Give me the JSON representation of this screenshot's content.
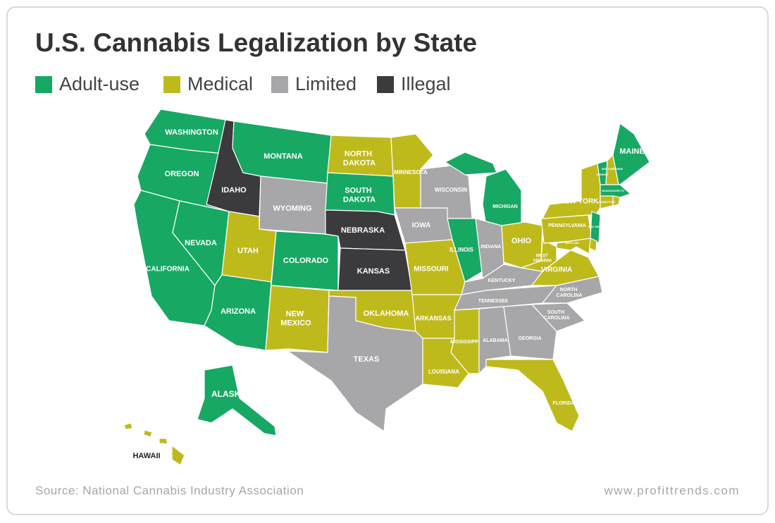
{
  "title": "U.S. Cannabis Legalization by State",
  "legend": [
    {
      "name": "Adult-use",
      "color": "#17a864"
    },
    {
      "name": "Medical",
      "color": "#bfba1c"
    },
    {
      "name": "Limited",
      "color": "#a7a6a8"
    },
    {
      "name": "Illegal",
      "color": "#3b3a3c"
    }
  ],
  "states": [
    {
      "label": "WASHINGTON",
      "status": 0
    },
    {
      "label": "OREGON",
      "status": 0
    },
    {
      "label": "CALIFORNIA",
      "status": 0
    },
    {
      "label": "NEVADA",
      "status": 0
    },
    {
      "label": "IDAHO",
      "status": 3
    },
    {
      "label": "MONTANA",
      "status": 0
    },
    {
      "label": "WYOMING",
      "status": 2
    },
    {
      "label": "UTAH",
      "status": 1
    },
    {
      "label": "COLORADO",
      "status": 0
    },
    {
      "label": "ARIZONA",
      "status": 0
    },
    {
      "label": "NEW MEXICO",
      "status": 1
    },
    {
      "label": "NORTH DAKOTA",
      "status": 1
    },
    {
      "label": "SOUTH DAKOTA",
      "status": 0
    },
    {
      "label": "NEBRASKA",
      "status": 3
    },
    {
      "label": "KANSAS",
      "status": 3
    },
    {
      "label": "OKLAHOMA",
      "status": 1
    },
    {
      "label": "TEXAS",
      "status": 2
    },
    {
      "label": "MINNESOTA",
      "status": 1
    },
    {
      "label": "IOWA",
      "status": 2
    },
    {
      "label": "MISSOURI",
      "status": 1
    },
    {
      "label": "ARKANSAS",
      "status": 1
    },
    {
      "label": "LOUISIANA",
      "status": 1
    },
    {
      "label": "WISCONSIN",
      "status": 2
    },
    {
      "label": "ILLINOIS",
      "status": 0
    },
    {
      "label": "MICHIGAN",
      "status": 0
    },
    {
      "label": "INDIANA",
      "status": 2
    },
    {
      "label": "OHIO",
      "status": 1
    },
    {
      "label": "KENTUCKY",
      "status": 2
    },
    {
      "label": "TENNESSEE",
      "status": 2
    },
    {
      "label": "MISSISSIPPI",
      "status": 1
    },
    {
      "label": "ALABAMA",
      "status": 2
    },
    {
      "label": "GEORGIA",
      "status": 2
    },
    {
      "label": "FLORIDA",
      "status": 1
    },
    {
      "label": "SOUTH CAROLINA",
      "status": 2
    },
    {
      "label": "NORTH CAROLINA",
      "status": 2
    },
    {
      "label": "VIRGINIA",
      "status": 1
    },
    {
      "label": "WEST VIRGINIA",
      "status": 1
    },
    {
      "label": "PENNSYLVANIA",
      "status": 1
    },
    {
      "label": "NEW YORK",
      "status": 1
    },
    {
      "label": "VERMONT",
      "status": 0
    },
    {
      "label": "NEW HAMPSHIRE",
      "status": 1
    },
    {
      "label": "MAINE",
      "status": 0
    },
    {
      "label": "MASSACHUSETTS",
      "status": 0
    },
    {
      "label": "CONNECTICUT",
      "status": 1
    },
    {
      "status": 1
    },
    {
      "label": "NEW JERSEY",
      "status": 0
    },
    {
      "status": 1
    },
    {
      "label": "MARYLAND",
      "status": 1
    },
    {
      "status": 0
    },
    {
      "label": "ALASKA",
      "status": 0
    },
    {
      "label": "HAWAII",
      "status": 1
    }
  ],
  "source": "Source: National Cannabis Industry Association",
  "website": "www.profittrends.com"
}
